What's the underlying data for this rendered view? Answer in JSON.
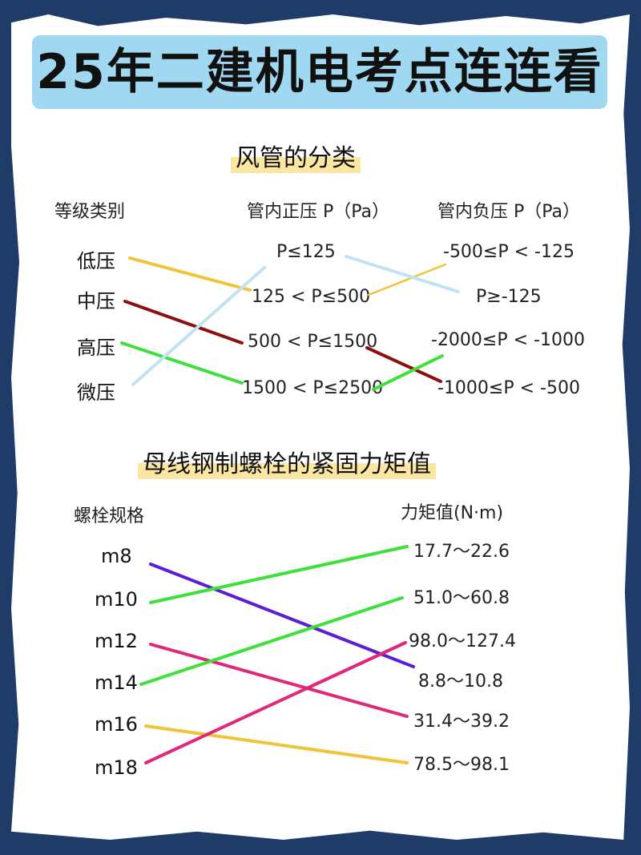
{
  "title": "25年二建机电考点连连看",
  "section1": {
    "title": "风管的分类",
    "headers": {
      "category": "等级类别",
      "positive": "管内正压 P（Pa）",
      "negative": "管内负压 P（Pa）"
    },
    "categories": [
      "低压",
      "中压",
      "高压",
      "微压"
    ],
    "positive": [
      "P≤125",
      "125 < P≤500",
      "500 < P≤1500",
      "1500 < P≤2500"
    ],
    "negative": [
      "-500≤P < -125",
      "P≥-125",
      "-2000≤P < -1000",
      "-1000≤P < -500"
    ],
    "colors": {
      "low": "#f0c43a",
      "medium": "#8b1010",
      "high": "#3fe03a",
      "micro": "#bfe3f2"
    }
  },
  "section2": {
    "title": "母线钢制螺栓的紧固力矩值",
    "headers": {
      "spec": "螺栓规格",
      "torque": "力矩值(N·m)"
    },
    "specs": [
      "m8",
      "m10",
      "m12",
      "m14",
      "m16",
      "m18"
    ],
    "torques": [
      "17.7～22.6",
      "51.0～60.8",
      "98.0～127.4",
      "8.8～10.8",
      "31.4～39.2",
      "78.5～98.1"
    ],
    "colors": {
      "m8": "#5a1fd1",
      "m10": "#3fe03a",
      "m12": "#e0287a",
      "m14": "#3fe03a",
      "m16": "#f0c43a",
      "m18": "#e0287a"
    }
  }
}
